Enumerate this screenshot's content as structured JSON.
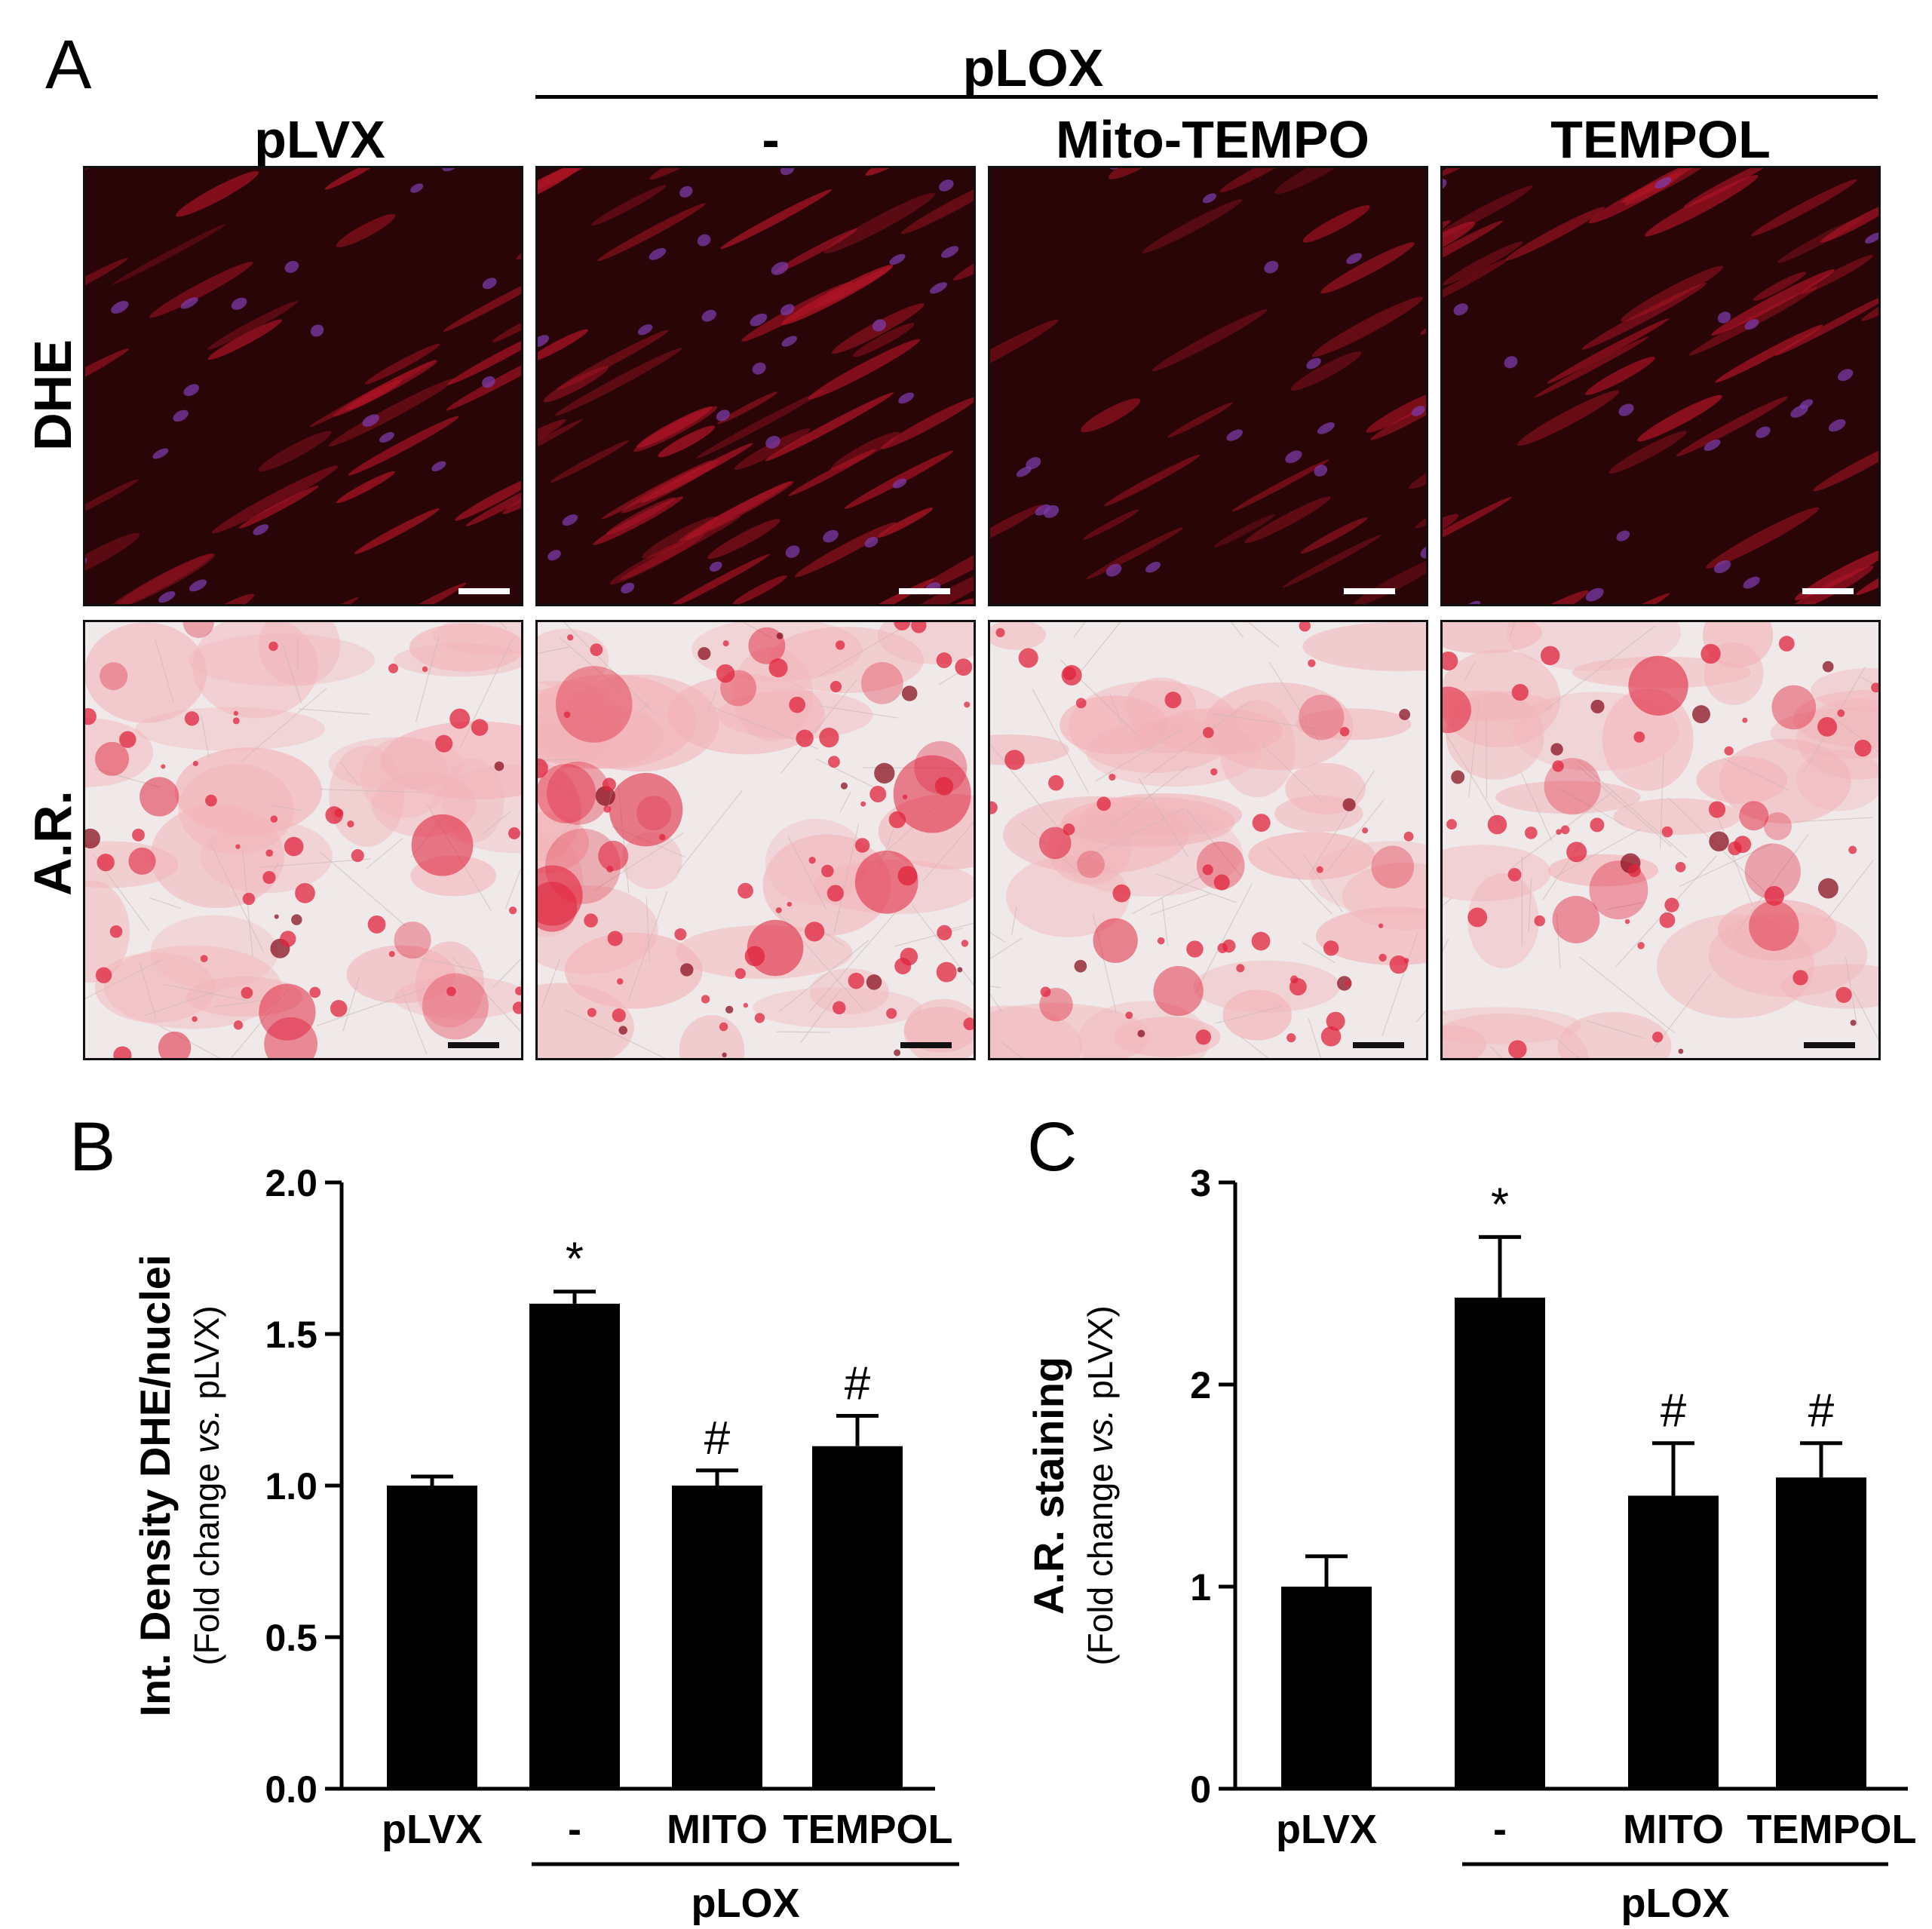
{
  "panel_labels": {
    "a": "A",
    "b": "B",
    "c": "C"
  },
  "figure_a": {
    "group_header": "pLOX",
    "column_labels": [
      "pLVX",
      "-",
      "Mito-TEMPO",
      "TEMPOL"
    ],
    "row_labels": [
      "DHE",
      "A.R."
    ],
    "colors": {
      "dhe_background": "#2a0508",
      "dhe_cytoplasm": "#b01425",
      "dhe_nuclei": "#7b3aa8",
      "ar_background": "#f0e9e9",
      "ar_stain": "#e0233c"
    }
  },
  "chart_data": [
    {
      "type": "bar",
      "panel": "B",
      "categories": [
        "pLVX",
        "-",
        "MITO",
        "TEMPOL"
      ],
      "group_bracket_label": "pLOX",
      "values": [
        1.0,
        1.6,
        1.0,
        1.13
      ],
      "errors": [
        0.03,
        0.04,
        0.05,
        0.1
      ],
      "annotations": [
        "",
        "*",
        "#",
        "#"
      ],
      "ylabel_main": "Int. Density  DHE/nuclei",
      "ylabel_sub_prefix": "(Fold change ",
      "ylabel_sub_italic": "vs.",
      "ylabel_sub_suffix": " pLVX)",
      "ylim": [
        0,
        2.0
      ],
      "yticks": [
        "0.0",
        "0.5",
        "1.0",
        "1.5",
        "2.0"
      ],
      "ytick_values": [
        0,
        0.5,
        1.0,
        1.5,
        2.0
      ],
      "bar_color": "#000000"
    },
    {
      "type": "bar",
      "panel": "C",
      "categories": [
        "pLVX",
        "-",
        "MITO",
        "TEMPOL"
      ],
      "group_bracket_label": "pLOX",
      "values": [
        1.0,
        2.43,
        1.45,
        1.54
      ],
      "errors": [
        0.15,
        0.3,
        0.26,
        0.17
      ],
      "annotations": [
        "",
        "*",
        "#",
        "#"
      ],
      "ylabel_main": "A.R. staining",
      "ylabel_sub_prefix": "(Fold change ",
      "ylabel_sub_italic": "vs.",
      "ylabel_sub_suffix": " pLVX)",
      "ylim": [
        0,
        3
      ],
      "yticks": [
        "0",
        "1",
        "2",
        "3"
      ],
      "ytick_values": [
        0,
        1,
        2,
        3
      ],
      "bar_color": "#000000"
    }
  ]
}
